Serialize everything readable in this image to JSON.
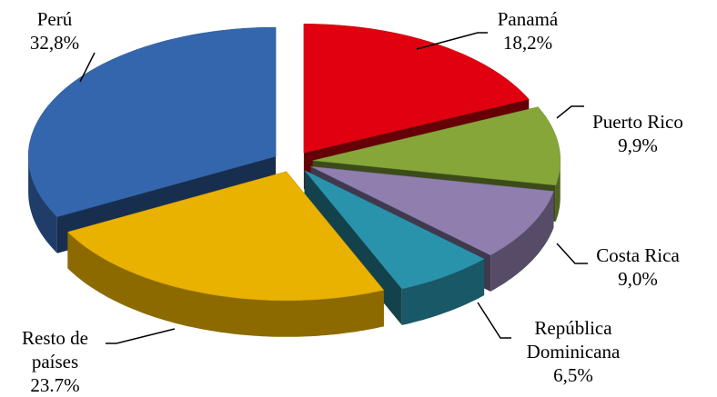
{
  "chart_data": {
    "type": "pie",
    "categories": [
      "Panamá",
      "Puerto Rico",
      "Costa Rica",
      "República Dominicana",
      "Resto de países",
      "Perú"
    ],
    "values": [
      18.2,
      9.9,
      9.0,
      6.5,
      23.7,
      32.8
    ],
    "value_labels": [
      "18,2%",
      "9,9%",
      "9,0%",
      "6,5%",
      "23.7%",
      "32,8%"
    ],
    "colors": [
      "#e0000f",
      "#86a63a",
      "#8f7eae",
      "#2a93ac",
      "#e9b100",
      "#3466ad"
    ]
  }
}
